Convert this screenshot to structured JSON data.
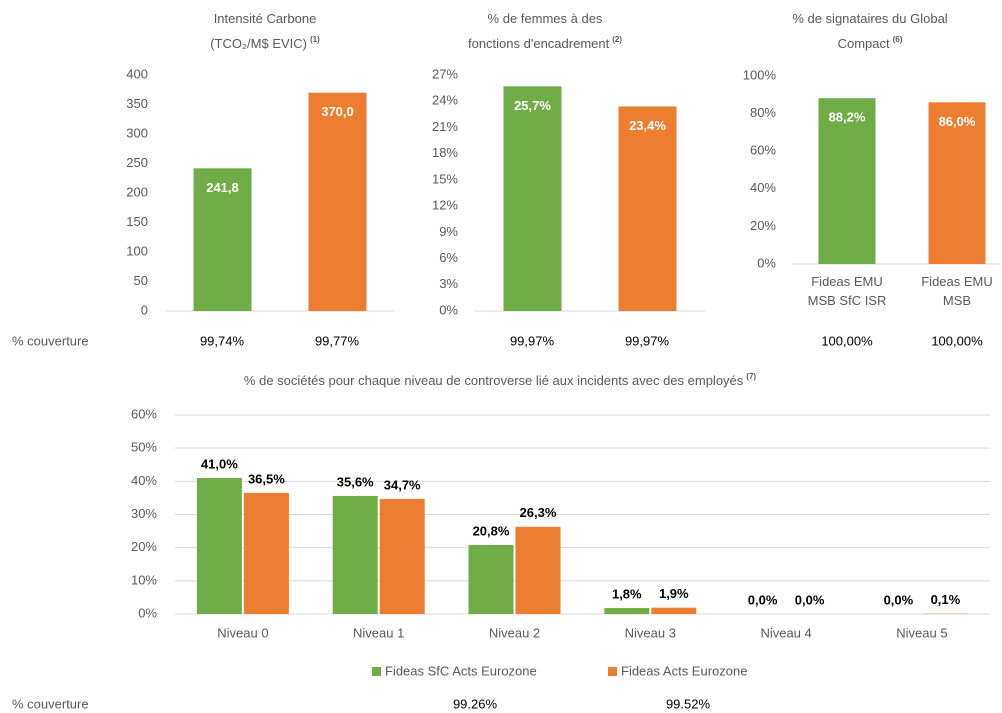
{
  "chart_data": [
    {
      "type": "bar",
      "title": [
        "Intensité Carbone",
        "(TCO₂/M$ EVIC)"
      ],
      "title_note": "(1)",
      "categories": [
        null,
        null
      ],
      "series": [
        {
          "name": null,
          "colors": [
            "#70ad47",
            "#ed7d31"
          ],
          "values": [
            241.8,
            370.0
          ],
          "value_labels": [
            "241,8",
            "370,0"
          ]
        }
      ],
      "ylim": [
        0,
        400
      ],
      "yticks": [
        0,
        50,
        100,
        150,
        200,
        250,
        300,
        350,
        400
      ],
      "grid": false,
      "label_position": "inside"
    },
    {
      "type": "bar",
      "title": [
        "% de femmes à des",
        "fonctions d'encadrement"
      ],
      "title_note": "(2)",
      "categories": [
        null,
        null
      ],
      "series": [
        {
          "name": null,
          "colors": [
            "#70ad47",
            "#ed7d31"
          ],
          "values": [
            25.7,
            23.4
          ],
          "value_labels": [
            "25,7%",
            "23,4%"
          ]
        }
      ],
      "ylim": [
        0,
        27
      ],
      "yticks": [
        {
          "value": 0,
          "label": "0%"
        },
        {
          "value": 3,
          "label": "3%"
        },
        {
          "value": 6,
          "label": "6%"
        },
        {
          "value": 9,
          "label": "9%"
        },
        {
          "value": 12,
          "label": "12%"
        },
        {
          "value": 15,
          "label": "15%"
        },
        {
          "value": 18,
          "label": "18%"
        },
        {
          "value": 21,
          "label": "21%"
        },
        {
          "value": 24,
          "label": "24%"
        },
        {
          "value": 27,
          "label": "27%"
        }
      ],
      "grid": false,
      "label_position": "inside"
    },
    {
      "type": "bar",
      "title": [
        "% de signataires du Global",
        "Compact"
      ],
      "title_note": "(6)",
      "categories": [
        "Fideas EMU MSB SfC ISR",
        "Fideas EMU MSB"
      ],
      "series": [
        {
          "name": null,
          "colors": [
            "#70ad47",
            "#ed7d31"
          ],
          "values": [
            88.2,
            86.0
          ],
          "value_labels": [
            "88,2%",
            "86,0%"
          ]
        }
      ],
      "ylim": [
        0,
        100
      ],
      "yticks": [
        {
          "value": 0,
          "label": "0%"
        },
        {
          "value": 20,
          "label": "20%"
        },
        {
          "value": 40,
          "label": "40%"
        },
        {
          "value": 60,
          "label": "60%"
        },
        {
          "value": 80,
          "label": "80%"
        },
        {
          "value": 100,
          "label": "100%"
        }
      ],
      "grid": false,
      "label_position": "inside"
    },
    {
      "type": "grouped_bar",
      "title": [
        "% de sociétés pour chaque niveau de controverse lié aux incidents avec des employés"
      ],
      "title_note": "(7)",
      "categories": [
        "Niveau 0",
        "Niveau 1",
        "Niveau 2",
        "Niveau 3",
        "Niveau 4",
        "Niveau 5"
      ],
      "series": [
        {
          "name": "Fideas SfC Acts Eurozone",
          "color": "#70ad47",
          "values": [
            41.0,
            35.6,
            20.8,
            1.8,
            0.0,
            0.0
          ],
          "value_labels": [
            "41,0%",
            "35,6%",
            "20,8%",
            "1,8%",
            "0,0%",
            "0,0%"
          ]
        },
        {
          "name": "Fideas Acts Eurozone",
          "color": "#ed7d31",
          "values": [
            36.5,
            34.7,
            26.3,
            1.9,
            0.0,
            0.1
          ],
          "value_labels": [
            "36,5%",
            "34,7%",
            "26,3%",
            "1,9%",
            "0,0%",
            "0,1%"
          ]
        }
      ],
      "ylim": [
        0,
        60
      ],
      "yticks": [
        {
          "value": 0,
          "label": "0%"
        },
        {
          "value": 10,
          "label": "10%"
        },
        {
          "value": 20,
          "label": "20%"
        },
        {
          "value": 30,
          "label": "30%"
        },
        {
          "value": 40,
          "label": "40%"
        },
        {
          "value": 50,
          "label": "50%"
        },
        {
          "value": 60,
          "label": "60%"
        }
      ],
      "grid": true,
      "legend": "bottom",
      "label_position": "above"
    }
  ],
  "coverage": [
    {
      "label": "% couverture",
      "values": [
        "99,74%",
        "99,77%",
        "99,97%",
        "99,97%",
        "100,00%",
        "100,00%"
      ]
    },
    {
      "label": "% couverture",
      "values": [
        "99.26%",
        "99.52%"
      ]
    }
  ]
}
